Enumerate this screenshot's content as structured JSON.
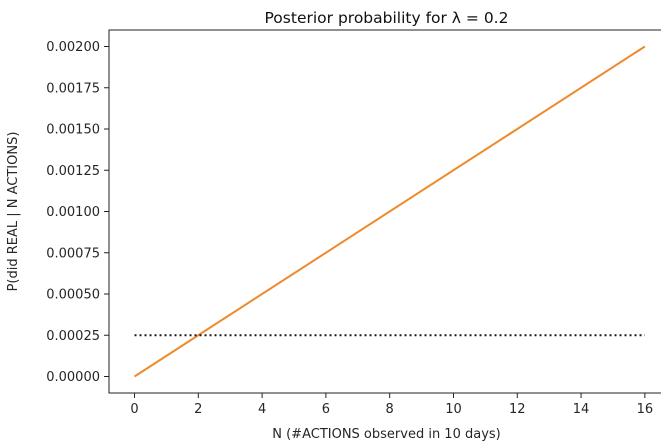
{
  "chart_data": {
    "type": "line",
    "title": "Posterior probability for λ = 0.2",
    "xlabel": "N (#ACTIONS observed in 10 days)",
    "ylabel": "P(did REAL | N ACTIONS)",
    "xlim": [
      -0.8,
      16.6
    ],
    "ylim": [
      -0.0001,
      0.0021
    ],
    "x_ticks": [
      0,
      2,
      4,
      6,
      8,
      10,
      12,
      14,
      16
    ],
    "y_ticks": [
      0.0,
      0.00025,
      0.0005,
      0.00075,
      0.001,
      0.00125,
      0.0015,
      0.00175,
      0.002
    ],
    "x_tick_labels": [
      "0",
      "2",
      "4",
      "6",
      "8",
      "10",
      "12",
      "14",
      "16"
    ],
    "y_tick_labels": [
      "0.00000",
      "0.00025",
      "0.00050",
      "0.00075",
      "0.00100",
      "0.00125",
      "0.00150",
      "0.00175",
      "0.00200"
    ],
    "grid": false,
    "series": [
      {
        "style": "solid",
        "color": "#ee8a2b",
        "x": [
          0,
          16
        ],
        "y": [
          0.0,
          0.002
        ]
      },
      {
        "style": "dotted",
        "color": "#1a1a1a",
        "x": [
          0,
          16
        ],
        "y": [
          0.00025,
          0.00025
        ]
      }
    ]
  }
}
